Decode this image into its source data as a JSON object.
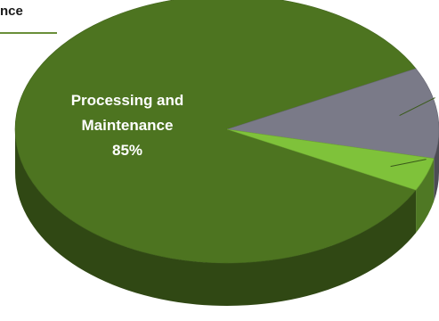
{
  "header": {
    "title_fragment": "nce"
  },
  "chart_data": {
    "type": "pie",
    "three_d": true,
    "slices": [
      {
        "label": "Processing and Maintenance",
        "value": 85,
        "value_label": "85%",
        "color": "#4d7420"
      },
      {
        "label": "",
        "value": 11,
        "value_label": "",
        "color": "#7a7a88"
      },
      {
        "label": "",
        "value": 4,
        "value_label": "",
        "color": "#7fc23a"
      }
    ],
    "legend": "none"
  }
}
